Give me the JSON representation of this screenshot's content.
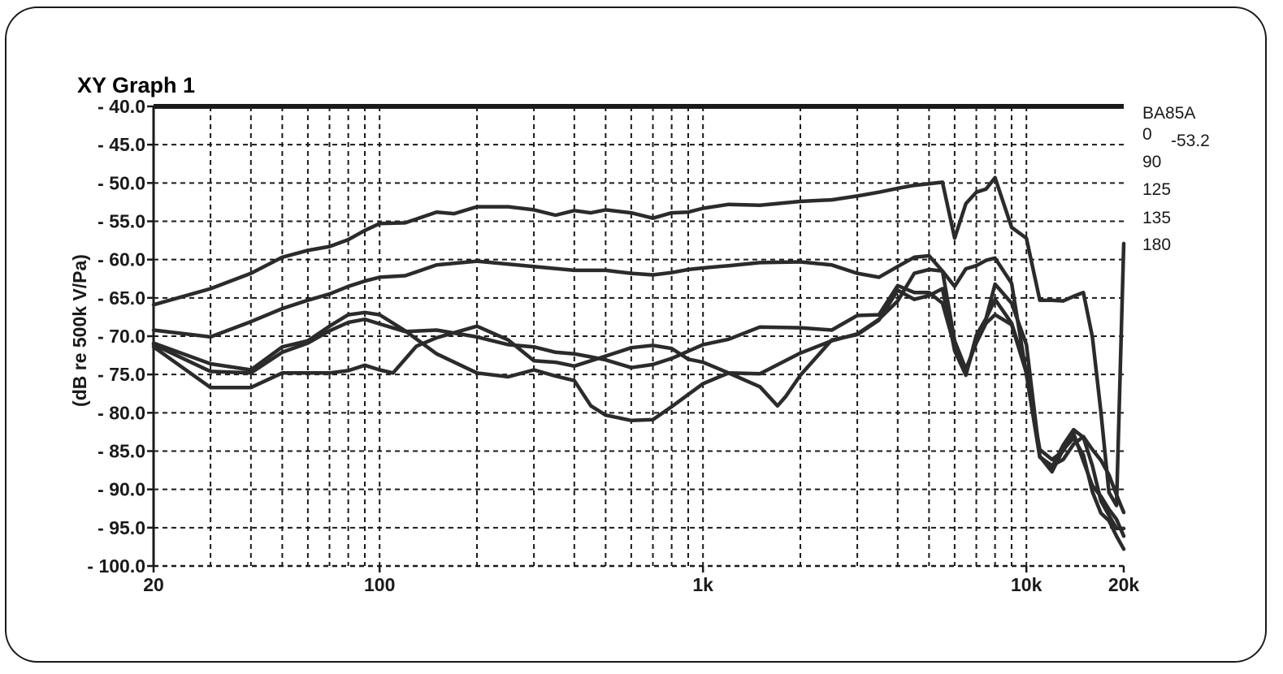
{
  "chart_data": {
    "type": "line",
    "title": "XY Graph 1",
    "xlabel": "",
    "ylabel": "(dB re 500k V/Pa)",
    "x_scale": "log",
    "xlim": [
      20,
      20000
    ],
    "ylim": [
      -100,
      -40
    ],
    "grid": true,
    "legend_position": "right",
    "legend_title": "BA85A",
    "legend_value": "-53.2",
    "x_ticks": [
      {
        "value": 20,
        "label": "20"
      },
      {
        "value": 100,
        "label": "100"
      },
      {
        "value": 1000,
        "label": "1k"
      },
      {
        "value": 10000,
        "label": "10k"
      },
      {
        "value": 20000,
        "label": "20k"
      }
    ],
    "y_ticks": [
      {
        "value": -40,
        "label": "- 40.0"
      },
      {
        "value": -45,
        "label": "- 45.0"
      },
      {
        "value": -50,
        "label": "- 50.0"
      },
      {
        "value": -55,
        "label": "- 55.0"
      },
      {
        "value": -60,
        "label": "- 60.0"
      },
      {
        "value": -65,
        "label": "- 65.0"
      },
      {
        "value": -70,
        "label": "- 70.0"
      },
      {
        "value": -75,
        "label": "- 75.0"
      },
      {
        "value": -80,
        "label": "- 80.0"
      },
      {
        "value": -85,
        "label": "- 85.0"
      },
      {
        "value": -90,
        "label": "- 90.0"
      },
      {
        "value": -95,
        "label": "- 95.0"
      },
      {
        "value": -100,
        "label": "- 100.0"
      }
    ],
    "series": [
      {
        "name": "0",
        "color": "#2b2b2b",
        "points": [
          [
            20,
            -65.9
          ],
          [
            30,
            -63.8
          ],
          [
            40,
            -61.8
          ],
          [
            50,
            -59.7
          ],
          [
            60,
            -58.8
          ],
          [
            70,
            -58.3
          ],
          [
            80,
            -57.4
          ],
          [
            90,
            -56.2
          ],
          [
            100,
            -55.3
          ],
          [
            120,
            -55.2
          ],
          [
            150,
            -53.8
          ],
          [
            170,
            -54
          ],
          [
            200,
            -53.1
          ],
          [
            250,
            -53.1
          ],
          [
            300,
            -53.5
          ],
          [
            350,
            -54.2
          ],
          [
            400,
            -53.6
          ],
          [
            450,
            -53.9
          ],
          [
            500,
            -53.5
          ],
          [
            600,
            -53.9
          ],
          [
            700,
            -54.6
          ],
          [
            800,
            -53.9
          ],
          [
            900,
            -53.8
          ],
          [
            1000,
            -53.3
          ],
          [
            1200,
            -52.8
          ],
          [
            1500,
            -52.9
          ],
          [
            2000,
            -52.4
          ],
          [
            2500,
            -52.2
          ],
          [
            3000,
            -51.7
          ],
          [
            3500,
            -51.2
          ],
          [
            4000,
            -50.7
          ],
          [
            4500,
            -50.3
          ],
          [
            5000,
            -50.1
          ],
          [
            5500,
            -49.9
          ],
          [
            6000,
            -57.2
          ],
          [
            6500,
            -52.7
          ],
          [
            7000,
            -51.2
          ],
          [
            7500,
            -50.8
          ],
          [
            8000,
            -49.3
          ],
          [
            9000,
            -55.8
          ],
          [
            10000,
            -57.2
          ],
          [
            11000,
            -65.3
          ],
          [
            12000,
            -65.3
          ],
          [
            13000,
            -65.4
          ],
          [
            14000,
            -64.8
          ],
          [
            15000,
            -64.3
          ],
          [
            16000,
            -70.1
          ],
          [
            17000,
            -79.9
          ],
          [
            18000,
            -90.4
          ],
          [
            19000,
            -92.1
          ],
          [
            20000,
            -57.9
          ]
        ]
      },
      {
        "name": "90",
        "color": "#2b2b2b",
        "points": [
          [
            20,
            -69.2
          ],
          [
            30,
            -70.1
          ],
          [
            40,
            -68.1
          ],
          [
            50,
            -66.4
          ],
          [
            60,
            -65.3
          ],
          [
            70,
            -64.5
          ],
          [
            80,
            -63.5
          ],
          [
            90,
            -62.8
          ],
          [
            100,
            -62.3
          ],
          [
            120,
            -62.1
          ],
          [
            150,
            -60.7
          ],
          [
            200,
            -60.2
          ],
          [
            300,
            -60.9
          ],
          [
            400,
            -61.4
          ],
          [
            500,
            -61.4
          ],
          [
            600,
            -61.8
          ],
          [
            700,
            -62
          ],
          [
            800,
            -61.7
          ],
          [
            900,
            -61.3
          ],
          [
            1000,
            -61.1
          ],
          [
            1200,
            -60.8
          ],
          [
            1500,
            -60.4
          ],
          [
            2000,
            -60.3
          ],
          [
            2500,
            -60.7
          ],
          [
            3000,
            -61.8
          ],
          [
            3500,
            -62.3
          ],
          [
            4000,
            -60.9
          ],
          [
            4500,
            -59.7
          ],
          [
            5000,
            -59.5
          ],
          [
            5500,
            -61.5
          ],
          [
            6000,
            -63.5
          ],
          [
            6500,
            -61.2
          ],
          [
            7000,
            -60.8
          ],
          [
            7500,
            -60.1
          ],
          [
            8000,
            -59.8
          ],
          [
            9000,
            -63.1
          ],
          [
            10000,
            -75
          ],
          [
            11000,
            -85.8
          ],
          [
            12000,
            -86.9
          ],
          [
            13000,
            -86.1
          ],
          [
            14000,
            -84.1
          ],
          [
            15000,
            -83.1
          ],
          [
            16000,
            -84.8
          ],
          [
            17000,
            -86.2
          ],
          [
            18000,
            -88.1
          ],
          [
            19000,
            -90.7
          ],
          [
            20000,
            -93
          ]
        ]
      },
      {
        "name": "125",
        "color": "#2b2b2b",
        "points": [
          [
            20,
            -70.9
          ],
          [
            30,
            -73.6
          ],
          [
            40,
            -74.4
          ],
          [
            50,
            -71.4
          ],
          [
            60,
            -70.6
          ],
          [
            70,
            -68.7
          ],
          [
            80,
            -67.2
          ],
          [
            90,
            -66.9
          ],
          [
            100,
            -67.2
          ],
          [
            120,
            -69.3
          ],
          [
            150,
            -72.3
          ],
          [
            200,
            -74.8
          ],
          [
            250,
            -75.3
          ],
          [
            300,
            -74.4
          ],
          [
            350,
            -75.2
          ],
          [
            400,
            -75.8
          ],
          [
            450,
            -79.1
          ],
          [
            500,
            -80.3
          ],
          [
            600,
            -81
          ],
          [
            700,
            -80.9
          ],
          [
            800,
            -79.2
          ],
          [
            1000,
            -76.2
          ],
          [
            1200,
            -74.8
          ],
          [
            1500,
            -76.6
          ],
          [
            1700,
            -79.1
          ],
          [
            1800,
            -77.9
          ],
          [
            2000,
            -75.1
          ],
          [
            2500,
            -70.5
          ],
          [
            3000,
            -69.8
          ],
          [
            3500,
            -67.9
          ],
          [
            4000,
            -64
          ],
          [
            4500,
            -65.2
          ],
          [
            5000,
            -64.7
          ],
          [
            5500,
            -63.8
          ],
          [
            6000,
            -71.9
          ],
          [
            6500,
            -75.1
          ],
          [
            7000,
            -69.9
          ],
          [
            7500,
            -67.7
          ],
          [
            8000,
            -63.2
          ],
          [
            9000,
            -65.7
          ],
          [
            10000,
            -71.1
          ],
          [
            11000,
            -85.7
          ],
          [
            12000,
            -87.1
          ],
          [
            13000,
            -84.2
          ],
          [
            14000,
            -82.2
          ],
          [
            15000,
            -83.2
          ],
          [
            16000,
            -86.9
          ],
          [
            17000,
            -91.5
          ],
          [
            18000,
            -93.4
          ],
          [
            19000,
            -95.1
          ],
          [
            20000,
            -95.1
          ]
        ]
      },
      {
        "name": "135",
        "color": "#2b2b2b",
        "points": [
          [
            20,
            -71.1
          ],
          [
            30,
            -74.6
          ],
          [
            40,
            -74.8
          ],
          [
            50,
            -72.1
          ],
          [
            60,
            -70.9
          ],
          [
            70,
            -69.3
          ],
          [
            80,
            -68.2
          ],
          [
            90,
            -67.8
          ],
          [
            100,
            -68.4
          ],
          [
            120,
            -69.4
          ],
          [
            150,
            -69.2
          ],
          [
            200,
            -70.1
          ],
          [
            250,
            -71.1
          ],
          [
            300,
            -71.4
          ],
          [
            350,
            -72.1
          ],
          [
            400,
            -72.3
          ],
          [
            450,
            -72.7
          ],
          [
            500,
            -73.1
          ],
          [
            600,
            -74.1
          ],
          [
            700,
            -73.7
          ],
          [
            800,
            -72.9
          ],
          [
            1000,
            -71.1
          ],
          [
            1200,
            -70.4
          ],
          [
            1500,
            -68.8
          ],
          [
            2000,
            -68.9
          ],
          [
            2500,
            -69.2
          ],
          [
            3000,
            -67.3
          ],
          [
            3500,
            -67.2
          ],
          [
            4000,
            -63.4
          ],
          [
            4500,
            -64.3
          ],
          [
            5000,
            -64.3
          ],
          [
            5500,
            -65.7
          ],
          [
            6000,
            -71.4
          ],
          [
            6500,
            -74.9
          ],
          [
            7000,
            -70.5
          ],
          [
            7500,
            -67.7
          ],
          [
            8000,
            -65.2
          ],
          [
            9000,
            -68.3
          ],
          [
            10000,
            -74.4
          ],
          [
            11000,
            -85.7
          ],
          [
            12000,
            -87.7
          ],
          [
            13000,
            -84.8
          ],
          [
            14000,
            -83.3
          ],
          [
            15000,
            -85.5
          ],
          [
            16000,
            -90.3
          ],
          [
            17000,
            -93.1
          ],
          [
            18000,
            -94.1
          ],
          [
            19000,
            -96.1
          ],
          [
            20000,
            -97.8
          ]
        ]
      },
      {
        "name": "180",
        "color": "#2b2b2b",
        "points": [
          [
            20,
            -71.4
          ],
          [
            30,
            -76.7
          ],
          [
            40,
            -76.7
          ],
          [
            50,
            -74.8
          ],
          [
            60,
            -74.8
          ],
          [
            70,
            -74.8
          ],
          [
            80,
            -74.5
          ],
          [
            90,
            -73.8
          ],
          [
            100,
            -74.4
          ],
          [
            110,
            -74.8
          ],
          [
            130,
            -71.3
          ],
          [
            150,
            -70.2
          ],
          [
            200,
            -68.7
          ],
          [
            250,
            -70.5
          ],
          [
            300,
            -73.2
          ],
          [
            350,
            -73.4
          ],
          [
            400,
            -73.9
          ],
          [
            500,
            -72.6
          ],
          [
            600,
            -71.5
          ],
          [
            700,
            -71.2
          ],
          [
            800,
            -71.6
          ],
          [
            900,
            -73
          ],
          [
            1000,
            -73.4
          ],
          [
            1200,
            -74.8
          ],
          [
            1500,
            -74.9
          ],
          [
            2000,
            -72.2
          ],
          [
            2500,
            -70.6
          ],
          [
            3000,
            -69.7
          ],
          [
            3500,
            -67.8
          ],
          [
            4000,
            -65.4
          ],
          [
            4500,
            -61.8
          ],
          [
            5000,
            -61.3
          ],
          [
            5500,
            -61.5
          ],
          [
            6000,
            -70.6
          ],
          [
            6500,
            -74.3
          ],
          [
            7000,
            -70.9
          ],
          [
            7500,
            -68.3
          ],
          [
            8000,
            -67.2
          ],
          [
            9000,
            -68.5
          ],
          [
            10000,
            -74.8
          ],
          [
            11000,
            -84.8
          ],
          [
            12000,
            -86.1
          ],
          [
            13000,
            -85
          ],
          [
            14000,
            -82.7
          ],
          [
            15000,
            -86.3
          ],
          [
            16000,
            -89.5
          ],
          [
            17000,
            -90.9
          ],
          [
            18000,
            -92.6
          ],
          [
            19000,
            -93.9
          ],
          [
            20000,
            -96.1
          ]
        ]
      }
    ]
  }
}
